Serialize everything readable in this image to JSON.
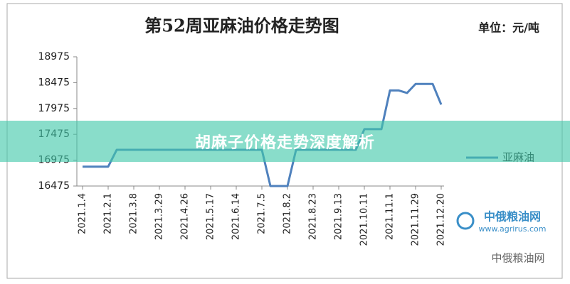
{
  "chart_data": {
    "type": "line",
    "title": "第52周亚麻油价格走势图",
    "unit": "单位：元/吨",
    "categories": [
      "2021.1.4",
      null,
      null,
      "2021.2.1",
      null,
      null,
      "2021.3.8",
      null,
      null,
      "2021.3.29",
      null,
      null,
      "2021.4.26",
      null,
      null,
      "2021.5.17",
      null,
      null,
      "2021.6.14",
      null,
      null,
      "2021.7.5",
      null,
      null,
      "2021.8.2",
      null,
      null,
      "2021.8.23",
      null,
      null,
      "2021.9.13",
      null,
      null,
      "2021.10.11",
      null,
      null,
      "2021.11.1",
      null,
      null,
      "2021.11.29",
      null,
      null,
      "2021.12.20"
    ],
    "series": [
      {
        "name": "亚麻油",
        "color": "#4f81bd",
        "values": [
          16850,
          16850,
          16850,
          16850,
          17175,
          17175,
          17175,
          17175,
          17175,
          17175,
          17175,
          17175,
          17175,
          17175,
          17175,
          17175,
          17175,
          17175,
          17175,
          17175,
          17175,
          17175,
          16475,
          16475,
          16475,
          17175,
          17175,
          17175,
          17175,
          17175,
          17175,
          17175,
          17175,
          17575,
          17575,
          17575,
          18325,
          18325,
          18275,
          18450,
          18450,
          18450,
          18050
        ]
      }
    ],
    "ylim": [
      16475,
      18975
    ],
    "yticks": [
      16475,
      16975,
      17475,
      17975,
      18475,
      18975
    ],
    "grid": false,
    "legend": "right"
  },
  "banner": "胡麻子价格走势深度解析",
  "watermark": {
    "brand": "中俄粮油网",
    "url": "www.agrirus.com",
    "wechat": "中俄粮油网"
  }
}
